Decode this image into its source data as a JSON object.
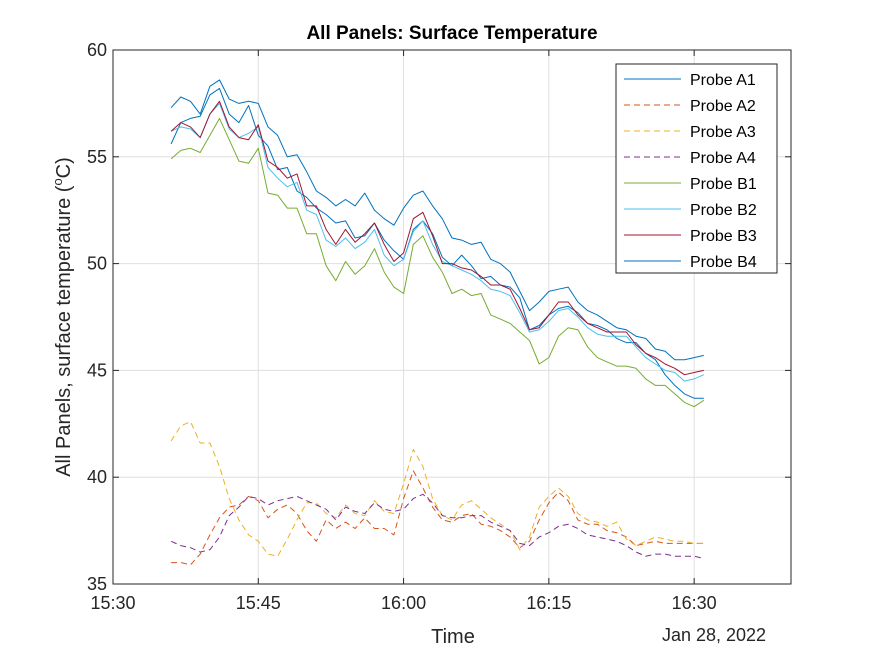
{
  "chart_data": {
    "type": "line",
    "title": "All Panels: Surface Temperature",
    "xlabel": "Time",
    "ylabel": "All Panels, surface temperature (",
    "ylabel_sup": "o",
    "ylabel_tail": "C)",
    "date_label": "Jan 28, 2022",
    "x_ticks": [
      "15:30",
      "15:45",
      "16:00",
      "16:15",
      "16:30"
    ],
    "y_ticks": [
      "35",
      "40",
      "45",
      "50",
      "55",
      "60"
    ],
    "xlim": [
      "15:30",
      "16:40"
    ],
    "ylim": [
      35,
      60
    ],
    "grid": true,
    "legend_position": "top-right",
    "x": [
      "15:36",
      "15:37",
      "15:38",
      "15:39",
      "15:40",
      "15:41",
      "15:42",
      "15:43",
      "15:44",
      "15:45",
      "15:46",
      "15:47",
      "15:48",
      "15:49",
      "15:50",
      "15:51",
      "15:52",
      "15:53",
      "15:54",
      "15:55",
      "15:56",
      "15:57",
      "15:58",
      "15:59",
      "16:00",
      "16:01",
      "16:02",
      "16:03",
      "16:04",
      "16:05",
      "16:06",
      "16:07",
      "16:08",
      "16:09",
      "16:10",
      "16:11",
      "16:12",
      "16:13",
      "16:14",
      "16:15",
      "16:16",
      "16:17",
      "16:18",
      "16:19",
      "16:20",
      "16:21",
      "16:22",
      "16:23",
      "16:24",
      "16:25",
      "16:26",
      "16:27",
      "16:28",
      "16:29",
      "16:30",
      "16:31"
    ],
    "series": [
      {
        "name": "Probe A1",
        "color": "#0072BD",
        "dash": false,
        "values": [
          55.6,
          56.6,
          56.8,
          56.9,
          57.9,
          58.2,
          57.0,
          56.6,
          57.4,
          56.0,
          55.5,
          54.4,
          54.5,
          53.4,
          53.1,
          52.6,
          52.3,
          51.9,
          52.0,
          51.2,
          51.3,
          51.9,
          51.1,
          50.6,
          50.2,
          51.6,
          52.0,
          51.4,
          50.3,
          49.9,
          50.4,
          49.9,
          49.3,
          49.4,
          49.0,
          48.9,
          48.4,
          46.9,
          47.1,
          47.6,
          47.9,
          48.0,
          47.7,
          47.2,
          47.1,
          46.9,
          46.5,
          46.3,
          46.3,
          45.8,
          45.5,
          44.8,
          44.3,
          43.9,
          43.7,
          43.7
        ]
      },
      {
        "name": "Probe A2",
        "color": "#D95319",
        "dash": true,
        "values": [
          36.0,
          36.0,
          35.9,
          36.4,
          37.3,
          38.1,
          38.6,
          38.7,
          39.1,
          38.9,
          38.1,
          38.5,
          38.7,
          38.3,
          37.5,
          37.0,
          38.0,
          37.6,
          37.9,
          37.6,
          38.1,
          37.6,
          37.6,
          37.3,
          39.0,
          40.3,
          39.5,
          38.6,
          38.0,
          37.9,
          38.2,
          38.3,
          37.8,
          37.7,
          37.5,
          37.2,
          36.7,
          37.0,
          38.0,
          38.8,
          39.3,
          38.9,
          38.0,
          37.8,
          37.8,
          37.5,
          37.4,
          37.2,
          36.8,
          36.9,
          37.0,
          36.9,
          36.9,
          36.9,
          36.9,
          36.9
        ]
      },
      {
        "name": "Probe A3",
        "color": "#EDB120",
        "dash": true,
        "values": [
          41.7,
          42.4,
          42.6,
          41.6,
          41.6,
          40.5,
          39.0,
          38.0,
          37.3,
          37.0,
          36.4,
          36.3,
          37.1,
          38.0,
          38.8,
          38.8,
          38.3,
          38.1,
          38.7,
          38.3,
          38.2,
          38.9,
          38.4,
          38.3,
          39.7,
          41.3,
          40.5,
          39.0,
          38.2,
          38.0,
          38.7,
          38.9,
          38.5,
          38.1,
          37.8,
          37.5,
          36.6,
          37.2,
          38.6,
          39.1,
          39.5,
          39.1,
          38.3,
          38.0,
          37.9,
          37.7,
          37.9,
          37.1,
          36.8,
          37.0,
          37.2,
          37.1,
          37.0,
          37.0,
          36.9,
          36.9
        ]
      },
      {
        "name": "Probe A4",
        "color": "#7E2F8E",
        "dash": true,
        "values": [
          37.0,
          36.8,
          36.7,
          36.5,
          36.6,
          37.2,
          38.2,
          38.6,
          39.1,
          39.0,
          38.7,
          38.9,
          39.0,
          39.1,
          38.9,
          38.7,
          38.5,
          38.0,
          38.6,
          38.4,
          38.3,
          38.8,
          38.5,
          38.4,
          38.5,
          39.0,
          39.2,
          38.8,
          38.2,
          38.1,
          38.1,
          38.2,
          38.2,
          37.9,
          37.7,
          37.5,
          36.9,
          36.8,
          37.2,
          37.4,
          37.7,
          37.8,
          37.6,
          37.3,
          37.2,
          37.1,
          37.0,
          36.8,
          36.5,
          36.3,
          36.4,
          36.4,
          36.3,
          36.3,
          36.3,
          36.2
        ]
      },
      {
        "name": "Probe B1",
        "color": "#77AC30",
        "dash": false,
        "values": [
          54.9,
          55.3,
          55.4,
          55.2,
          56.0,
          56.8,
          55.8,
          54.8,
          54.7,
          55.4,
          53.3,
          53.2,
          52.6,
          52.6,
          51.4,
          51.4,
          49.9,
          49.2,
          50.1,
          49.5,
          49.9,
          50.7,
          49.6,
          48.9,
          48.6,
          50.9,
          51.3,
          50.3,
          49.6,
          48.6,
          48.8,
          48.5,
          48.6,
          47.6,
          47.4,
          47.2,
          46.8,
          46.4,
          45.3,
          45.6,
          46.6,
          47.0,
          46.9,
          46.1,
          45.6,
          45.4,
          45.2,
          45.2,
          45.1,
          44.6,
          44.3,
          44.3,
          43.9,
          43.5,
          43.3,
          43.6
        ]
      },
      {
        "name": "Probe B2",
        "color": "#4DBEEE",
        "dash": false,
        "values": [
          56.2,
          56.4,
          56.3,
          55.9,
          57.0,
          57.5,
          56.3,
          55.9,
          56.1,
          56.4,
          54.5,
          54.0,
          53.6,
          53.8,
          52.5,
          52.3,
          51.1,
          50.8,
          51.2,
          50.7,
          51.0,
          51.6,
          50.4,
          49.9,
          50.2,
          51.5,
          52.0,
          50.9,
          50.1,
          49.9,
          49.7,
          49.5,
          49.2,
          48.8,
          48.7,
          48.5,
          47.7,
          46.8,
          46.9,
          47.3,
          47.8,
          47.9,
          47.5,
          47.0,
          46.7,
          46.6,
          46.6,
          46.6,
          46.1,
          45.6,
          45.3,
          45.0,
          44.9,
          44.5,
          44.6,
          44.8
        ]
      },
      {
        "name": "Probe B3",
        "color": "#A2142F",
        "dash": false,
        "values": [
          56.2,
          56.6,
          56.4,
          55.9,
          57.0,
          57.6,
          56.4,
          55.9,
          55.8,
          56.5,
          54.8,
          54.5,
          54.0,
          54.2,
          52.7,
          52.7,
          51.6,
          50.9,
          51.6,
          51.0,
          51.4,
          51.9,
          50.9,
          50.1,
          50.5,
          52.1,
          52.4,
          51.3,
          50.0,
          50.0,
          49.8,
          49.7,
          49.4,
          49.0,
          49.0,
          48.8,
          47.9,
          46.9,
          47.0,
          47.6,
          48.2,
          48.2,
          47.6,
          47.2,
          47.0,
          46.8,
          46.8,
          46.8,
          46.2,
          45.8,
          45.6,
          45.3,
          45.1,
          44.8,
          44.9,
          45.0
        ]
      },
      {
        "name": "Probe B4",
        "color": "#0072BD",
        "dash": false,
        "values": [
          57.3,
          57.8,
          57.6,
          57.0,
          58.3,
          58.6,
          57.7,
          57.5,
          57.6,
          57.5,
          56.4,
          56.0,
          55.0,
          55.1,
          54.3,
          53.4,
          53.1,
          52.7,
          53.0,
          52.7,
          53.3,
          52.5,
          52.1,
          51.8,
          52.6,
          53.2,
          53.4,
          52.7,
          52.1,
          51.2,
          51.1,
          50.9,
          51.0,
          50.2,
          50.0,
          49.6,
          48.7,
          47.8,
          48.2,
          48.7,
          48.8,
          48.9,
          48.2,
          47.8,
          47.6,
          47.3,
          47.0,
          46.9,
          46.6,
          46.5,
          46.0,
          45.9,
          45.5,
          45.5,
          45.6,
          45.7
        ]
      }
    ]
  }
}
